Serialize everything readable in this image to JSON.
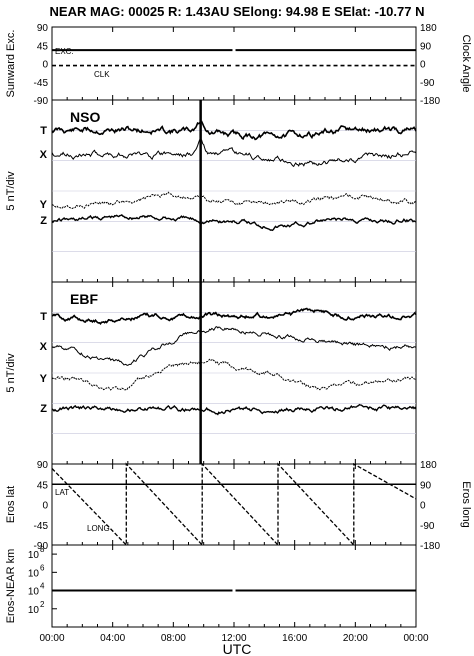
{
  "title": "NEAR MAG: 00025  R: 1.43AU  SElong:   94.98 E  SElat:  -10.77 N",
  "chart_data": {
    "type": "line",
    "x_axis": {
      "label": "UTC",
      "ticks": [
        "00:00",
        "04:00",
        "08:00",
        "12:00",
        "16:00",
        "20:00",
        "00:00"
      ],
      "range_hours": [
        0,
        24
      ]
    },
    "gap_hours": [
      11.9,
      12.1
    ],
    "spike_hour": 9.8,
    "panels": [
      {
        "id": "sunward",
        "left_label": "Sunward Exc.",
        "right_label": "Clock Angle",
        "left_ticks": [
          "45",
          "0",
          "-45",
          "-90"
        ],
        "left_ticks_top": "90",
        "right_ticks": [
          "180",
          "90",
          "0",
          "-90",
          "-180"
        ],
        "ylim_left": [
          -90,
          90
        ],
        "ylim_right": [
          -180,
          180
        ],
        "series": [
          {
            "name": "EXC.",
            "axis": "left",
            "style": "solid",
            "x": [
              0,
              11.9,
              12.1,
              24
            ],
            "y": [
              33,
              33,
              33,
              33
            ]
          },
          {
            "name": "CLK",
            "axis": "right",
            "style": "dashed",
            "x": [
              0,
              11.9,
              12.1,
              24
            ],
            "y": [
              -10,
              -10,
              -10,
              -10
            ]
          }
        ]
      },
      {
        "id": "nso",
        "title": "NSO",
        "left_label": "5 nT/div",
        "curves": [
          "T",
          "X",
          "Y",
          "Z"
        ]
      },
      {
        "id": "ebf",
        "title": "EBF",
        "left_label": "5 nT/div",
        "curves": [
          "T",
          "X",
          "Y",
          "Z"
        ]
      },
      {
        "id": "eros",
        "left_label": "Eros lat",
        "right_label": "Eros long",
        "left_ticks": [
          "90",
          "45",
          "0",
          "-45",
          "-90"
        ],
        "right_ticks": [
          "180",
          "90",
          "0",
          "-90",
          "-180"
        ],
        "ylim_left": [
          -90,
          90
        ],
        "ylim_right": [
          -180,
          180
        ],
        "series": [
          {
            "name": "LAT",
            "axis": "left",
            "style": "solid",
            "x": [
              0,
              24
            ],
            "y": [
              45,
              45
            ]
          },
          {
            "name": "LONG",
            "axis": "right",
            "style": "dashed",
            "x": [
              0,
              4.9,
              4.9,
              9.9,
              9.9,
              14.9,
              14.9,
              19.9,
              19.9,
              24
            ],
            "y": [
              160,
              -180,
              180,
              -180,
              180,
              -180,
              180,
              -180,
              180,
              25
            ]
          }
        ]
      },
      {
        "id": "dist",
        "left_label": "Eros-NEAR km",
        "left_ticks": [
          "10",
          "10",
          "10",
          "10"
        ],
        "left_tick_exps": [
          "8",
          "6",
          "4",
          "2"
        ],
        "ylim_log10": [
          0,
          9
        ],
        "series": [
          {
            "name": "distance",
            "axis": "left",
            "style": "solid",
            "x": [
              0,
              11.9,
              12.1,
              24
            ],
            "y_log10": [
              4,
              4,
              4,
              4
            ]
          }
        ]
      }
    ]
  }
}
